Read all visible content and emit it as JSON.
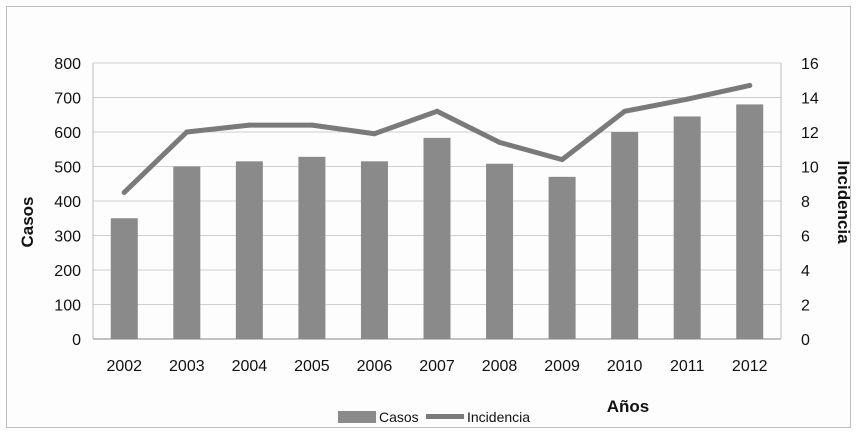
{
  "chart_data": {
    "type": "bar",
    "categories": [
      "2002",
      "2003",
      "2004",
      "2005",
      "2006",
      "2007",
      "2008",
      "2009",
      "2010",
      "2011",
      "2012"
    ],
    "series": [
      {
        "name": "Casos",
        "kind": "bar",
        "axis": "left",
        "color": "#8a8a8a",
        "values": [
          350,
          500,
          515,
          528,
          515,
          583,
          508,
          470,
          600,
          645,
          680
        ]
      },
      {
        "name": "Incidencia",
        "kind": "line",
        "axis": "right",
        "color": "#7a7a7a",
        "values": [
          8.5,
          12.0,
          12.4,
          12.4,
          11.9,
          13.2,
          11.4,
          10.4,
          13.2,
          13.9,
          14.7
        ]
      }
    ],
    "ylabel": "Casos",
    "y2label": "Incidencia",
    "xlabel": "Años",
    "ylim": [
      0,
      800
    ],
    "y2lim": [
      0,
      16
    ],
    "yticks": [
      "0",
      "100",
      "200",
      "300",
      "400",
      "500",
      "600",
      "700",
      "800"
    ],
    "y2ticks": [
      "0",
      "2",
      "4",
      "6",
      "8",
      "10",
      "12",
      "14",
      "16"
    ],
    "grid": true,
    "legend": "bottom-center"
  }
}
